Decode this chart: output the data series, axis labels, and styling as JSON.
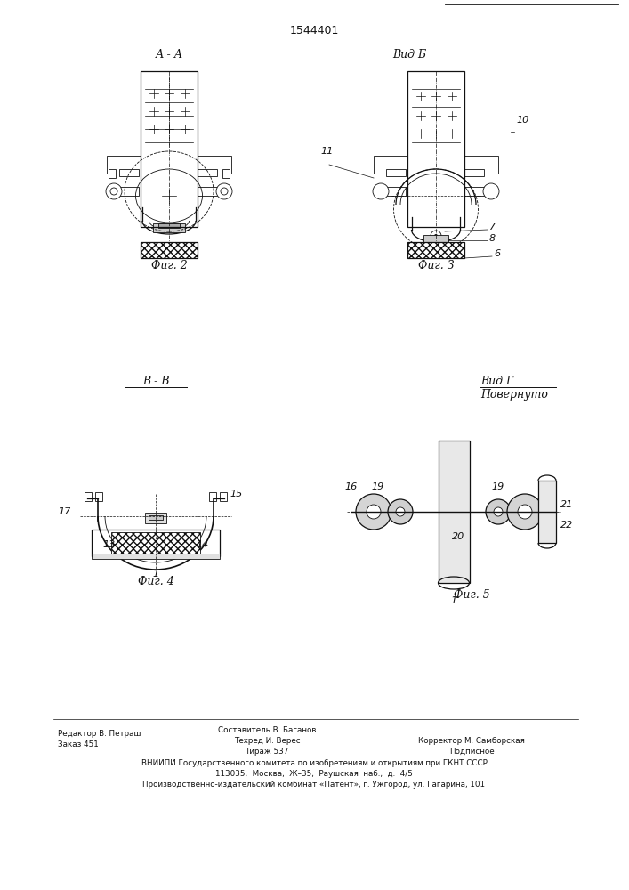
{
  "title": "1544401",
  "bg_color": "#ffffff",
  "fig2_label": "Фиг. 2",
  "fig3_label": "Фиг. 3",
  "fig4_label": "Фиг. 4",
  "fig5_label": "Фиг. 5",
  "view_aa": "А - А",
  "view_b": "Вид Б",
  "view_bb": "В - В",
  "view_g1": "Вид Г",
  "view_g2": "Повернуто"
}
